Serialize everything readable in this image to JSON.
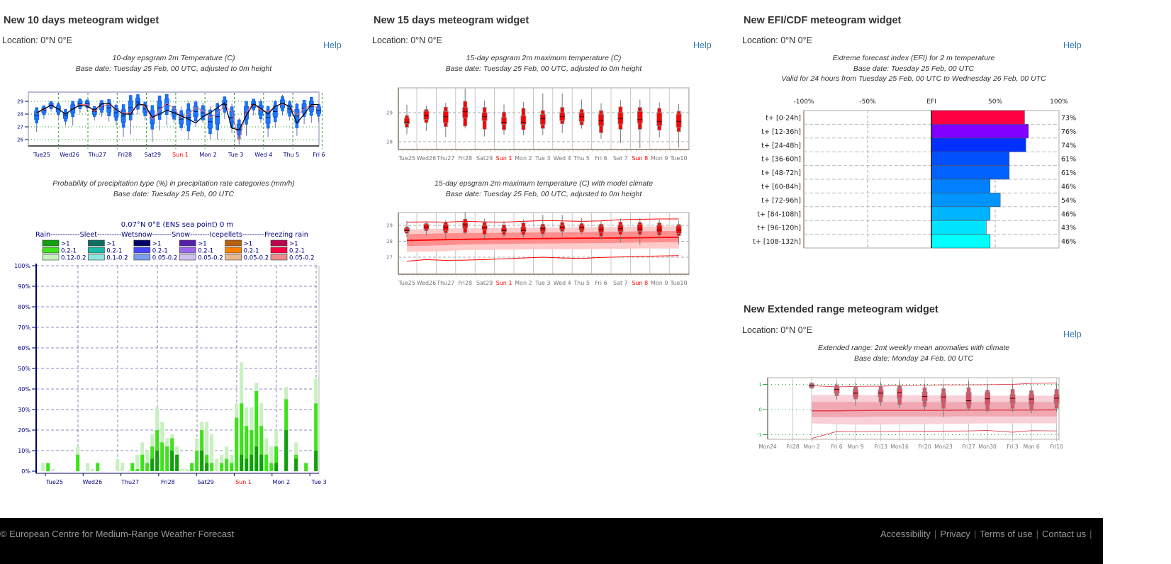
{
  "widgets": {
    "w10": {
      "title": "New 10 days meteogram widget",
      "location": "Location: 0°N 0°E",
      "help": "Help",
      "caption1": [
        "10-day epsgram 2m Temperature (C)",
        "Base date: Tuesday 25 Feb, 00 UTC, adjusted to 0m height"
      ],
      "caption2": [
        "Probability of precipitation type (%) in precipitation rate categories (mm/h)",
        "Base date: Tuesday 25 Feb, 00 UTC"
      ]
    },
    "w15": {
      "title": "New 15 days meteogram widget",
      "location": "Location: 0°N 0°E",
      "help": "Help",
      "caption1": [
        "15-day epsgram 2m maximum temperature (C)",
        "Base date: Tuesday 25 Feb, 00 UTC, adjusted to 0m height"
      ],
      "caption2": [
        "15-day epsgram 2m maximum temperature (C) with model climate",
        "Base date: Tuesday 25 Feb, 00 UTC, adjusted to 0m height"
      ]
    },
    "efi": {
      "title": "New EFI/CDF meteogram widget",
      "location": "Location: 0°N 0°E",
      "help": "Help",
      "caption": [
        "Extreme forecast index (EFI) for 2 m temperature",
        "Base date: Tuesday 25 Feb, 00 UTC",
        "Valid for 24 hours from Tuesday 25 Feb, 00 UTC to Wednesday 26 Feb, 00 UTC"
      ]
    },
    "ext": {
      "title": "New Extended range meteogram widget",
      "location": "Location: 0°N 0°E",
      "help": "Help",
      "caption": [
        "Extended range: 2mt weekly mean anomalies with climate",
        "Base date: Monday 24 Feb, 00 UTC"
      ]
    }
  },
  "footer": {
    "copyright": "© European Centre for Medium-Range Weather Forecast",
    "links": [
      "Accessibility",
      "Privacy",
      "Terms of use",
      "Contact us"
    ],
    "separator": "|"
  },
  "chart_data": [
    {
      "type": "box",
      "ylim": [
        25.6,
        29.7
      ],
      "y_ticks": [
        26,
        27,
        28,
        29
      ],
      "x_labels": [
        "Tue25",
        "Wed26",
        "Thu27",
        "Fri28",
        "Sat29",
        "Sun 1",
        "Mon 2",
        "Tue 3",
        "Wed 4",
        "Thu 5",
        "Fri 6"
      ],
      "weekend_label_color": "#ff0000",
      "box_color": "#1a75ff",
      "control_color": "#000000",
      "hres_color": "#ff6666",
      "median": [
        27.9,
        28.3,
        28.7,
        28.4,
        27.9,
        28.4,
        28.8,
        28.8,
        28.2,
        28.6,
        28.5,
        28.1,
        27.85,
        28.5,
        28.95,
        28.4,
        27.75,
        28.5,
        28.75,
        28.1,
        27.6,
        27.75,
        28.2,
        28.1,
        27.4,
        27.8,
        28.75,
        27.75,
        26.8,
        28.1,
        28.75,
        28.3,
        27.75,
        28.2,
        28.8,
        28.4,
        27.85,
        28.45,
        28.6,
        28.3
      ],
      "min": [
        26.6,
        27.6,
        28.2,
        27.7,
        27.1,
        27.1,
        28.1,
        28.2,
        27.5,
        27.8,
        27.4,
        27.1,
        26.2,
        26.4,
        28.0,
        27.5,
        25.8,
        26.7,
        27.1,
        27.3,
        26.7,
        26.0,
        27.0,
        27.3,
        26.0,
        26.0,
        27.6,
        26.5,
        25.6,
        26.3,
        27.9,
        27.3,
        26.2,
        26.9,
        27.9,
        27.5,
        26.3,
        27.2,
        27.3,
        27.4
      ],
      "max": [
        28.3,
        28.6,
        29.0,
        28.9,
        28.4,
        28.8,
        29.2,
        29.1,
        28.6,
        29.1,
        29.2,
        28.8,
        28.7,
        29.1,
        29.6,
        29.0,
        28.4,
        29.3,
        29.3,
        28.7,
        28.6,
        29.0,
        29.1,
        28.9,
        28.6,
        28.9,
        29.3,
        28.8,
        27.7,
        28.8,
        29.1,
        29.2,
        28.6,
        29.1,
        29.5,
        29.1,
        28.9,
        29.0,
        29.3,
        28.7
      ],
      "control": [
        28.1,
        28.4,
        28.7,
        28.4,
        28.0,
        28.4,
        28.7,
        28.6,
        28.3,
        28.8,
        28.85,
        28.35,
        28.0,
        28.0,
        28.8,
        28.7,
        27.75,
        28.0,
        28.3,
        28.1,
        27.85,
        27.6,
        27.3,
        27.8,
        28.1,
        28.5,
        28.9,
        26.9,
        26.75,
        27.9,
        28.8,
        28.45,
        28.0,
        28.6,
        28.85,
        28.6,
        27.3,
        28.0,
        28.75,
        28.75
      ],
      "hres": [
        28.05,
        28.35,
        28.7,
        28.4,
        28.0,
        28.4,
        28.75,
        28.75,
        28.2,
        28.6,
        28.8,
        28.3,
        28.1,
        28.1,
        28.8,
        28.6,
        27.6,
        28.3,
        28.85,
        28.45,
        27.7,
        28.0,
        28.5,
        28.3,
        27.7,
        28.1,
        28.6,
        28.2,
        25.9,
        28.2,
        28.8,
        28.3,
        28.2,
        28.6,
        28.8,
        28.6,
        27.9,
        28.4,
        28.75,
        28.4
      ]
    },
    {
      "type": "bar",
      "stacked": true,
      "title": "0.07°N 0°E (ENS sea point) 0 m",
      "legend_header": "Rain------------Sleet----------Wetsnow--------Snow--------Icepellets---------Freezing rain",
      "legend": [
        {
          "name": "Rain",
          "colors": [
            "#129e0e",
            "#3de21a",
            "#c8f0c0"
          ],
          "labels": [
            ">1",
            "0.2-1",
            "0.12-0.2"
          ]
        },
        {
          "name": "Sleet",
          "colors": [
            "#0b6e64",
            "#1cb8a6",
            "#8fe6de"
          ],
          "labels": [
            ">1",
            "0.2-1",
            "0.1-0.2"
          ]
        },
        {
          "name": "Wetsnow",
          "colors": [
            "#000066",
            "#4646ff",
            "#7a9cf0"
          ],
          "labels": [
            ">1",
            "0.2-1",
            "0.05-0.2"
          ]
        },
        {
          "name": "Snow",
          "colors": [
            "#5620aa",
            "#9a68ee",
            "#d0c0ee"
          ],
          "labels": [
            ">1",
            "0.2-1",
            "0.05-0.2"
          ]
        },
        {
          "name": "Icepellets",
          "colors": [
            "#b8600e",
            "#ff8000",
            "#e8b890"
          ],
          "labels": [
            ">1",
            "0.2-1",
            "0.05-0.2"
          ]
        },
        {
          "name": "Freezing rain",
          "colors": [
            "#bb0550",
            "#ff0044",
            "#ee8a8a"
          ],
          "labels": [
            ">1",
            "0.2-1",
            "0.05-0.2"
          ]
        }
      ],
      "ylim": [
        0,
        100
      ],
      "y_ticks": [
        "0%",
        "10%",
        "20%",
        "30%",
        "40%",
        "50%",
        "60%",
        "70%",
        "80%",
        "90%",
        "100%"
      ],
      "x_labels": [
        "Tue25",
        "Wed26",
        "Thu27",
        "Fri28",
        "Sat29",
        "Sun 1",
        "Mon 2",
        "Tue 3"
      ],
      "series": [
        {
          "name": ">1",
          "values": [
            0,
            0,
            0,
            0,
            0,
            0,
            0,
            0,
            0,
            0,
            0,
            0,
            0,
            0,
            0,
            0,
            0,
            0,
            0,
            0,
            0,
            0,
            6,
            10,
            0,
            0,
            10,
            8,
            0,
            0,
            0,
            0,
            10,
            4,
            0,
            0,
            0,
            0,
            0,
            0,
            8,
            6,
            8,
            12,
            8,
            0,
            0,
            4,
            0,
            20,
            0,
            6,
            0,
            0,
            0,
            10
          ]
        },
        {
          "name": "0.2-1",
          "values": [
            0,
            4,
            0,
            0,
            0,
            0,
            0,
            8,
            0,
            0,
            0,
            4,
            0,
            0,
            0,
            0,
            0,
            0,
            4,
            1,
            8,
            4,
            6,
            10,
            14,
            12,
            6,
            0,
            0,
            0,
            4,
            10,
            10,
            4,
            4,
            0,
            4,
            6,
            4,
            26,
            25,
            16,
            12,
            27,
            14,
            8,
            4,
            8,
            0,
            15,
            0,
            2,
            0,
            4,
            0,
            23
          ]
        },
        {
          "name": "0.12-0.2",
          "values": [
            4,
            0,
            1,
            0,
            0,
            0,
            0,
            4,
            0,
            4,
            1,
            0,
            0,
            0,
            0,
            6,
            4,
            0,
            0,
            7,
            6,
            6,
            6,
            11,
            10,
            4,
            2,
            4,
            1,
            1,
            0,
            6,
            4,
            16,
            14,
            6,
            4,
            6,
            4,
            7,
            20,
            9,
            11,
            4,
            11,
            8,
            8,
            8,
            0,
            6,
            0,
            6,
            0,
            0,
            0,
            12
          ]
        }
      ]
    },
    {
      "type": "box",
      "ylim": [
        27.73,
        29.85
      ],
      "y_ticks": [
        28,
        29
      ],
      "x_labels": [
        "Tue25",
        "Wed26",
        "Thu27",
        "Fri28",
        "Sat29",
        "Sun 1",
        "Mon 2",
        "Tue 3",
        "Wed 4",
        "Thu 5",
        "Fri 6",
        "Sat 7",
        "Sun 8",
        "Mon 9",
        "Tue10"
      ],
      "box_color": "#ff0000",
      "boxes": [
        [
          28.26,
          28.5,
          28.62,
          28.67,
          28.81,
          28.9,
          29.27
        ],
        [
          28.37,
          28.66,
          28.77,
          28.89,
          29.05,
          29.11,
          29.24
        ],
        [
          28.16,
          28.52,
          28.66,
          28.86,
          29.04,
          29.19,
          29.34
        ],
        [
          28.46,
          28.54,
          28.83,
          29.03,
          29.18,
          29.39,
          29.83
        ],
        [
          28.18,
          28.43,
          28.73,
          28.86,
          29.0,
          29.18,
          29.42
        ],
        [
          28.24,
          28.41,
          28.6,
          28.67,
          28.83,
          29.02,
          29.28
        ],
        [
          28.22,
          28.41,
          28.6,
          28.67,
          28.89,
          29.15,
          29.37
        ],
        [
          28.22,
          28.46,
          28.6,
          28.79,
          28.94,
          29.07,
          29.66
        ],
        [
          28.3,
          28.62,
          28.73,
          28.86,
          29.0,
          29.18,
          29.66
        ],
        [
          28.45,
          28.58,
          28.7,
          28.86,
          29.0,
          29.11,
          29.45
        ],
        [
          28.1,
          28.31,
          28.55,
          28.73,
          28.95,
          29.07,
          29.32
        ],
        [
          27.95,
          28.43,
          28.61,
          28.79,
          29.0,
          29.2,
          29.43
        ],
        [
          27.78,
          28.43,
          28.64,
          28.77,
          29.04,
          29.18,
          29.45
        ],
        [
          28.15,
          28.4,
          28.55,
          28.7,
          29.0,
          29.15,
          29.35
        ],
        [
          27.8,
          28.35,
          28.5,
          28.7,
          28.95,
          29.05,
          29.3
        ]
      ]
    },
    {
      "type": "box",
      "ylim": [
        26.0,
        29.78
      ],
      "y_ticks": [
        27,
        28,
        29
      ],
      "x_labels": [
        "Tue25",
        "Wed26",
        "Thu27",
        "Fri28",
        "Sat29",
        "Sun 1",
        "Mon 2",
        "Tue 3",
        "Wed 4",
        "Thu 5",
        "Fri 6",
        "Sat 7",
        "Sun 8",
        "Mon 9",
        "Tue10"
      ],
      "box_color": "#ff0000",
      "climate_color": "#ff0000",
      "climate": {
        "median": [
          28.05,
          28.07,
          28.1,
          28.12,
          28.14,
          28.15,
          28.16,
          28.17,
          28.18,
          28.19,
          28.2,
          28.21,
          28.22,
          28.24,
          28.25
        ],
        "inner_low": [
          27.7,
          27.72,
          27.75,
          27.8,
          27.82,
          27.83,
          27.85,
          27.86,
          27.87,
          27.88,
          27.89,
          27.9,
          27.92,
          27.93,
          27.95
        ],
        "inner_high": [
          28.45,
          28.47,
          28.5,
          28.52,
          28.52,
          28.53,
          28.55,
          28.55,
          28.57,
          28.58,
          28.6,
          28.6,
          28.62,
          28.63,
          28.65
        ],
        "outer_low": [
          27.35,
          27.35,
          27.38,
          27.45,
          27.45,
          27.47,
          27.48,
          27.5,
          27.5,
          27.5,
          27.52,
          27.53,
          27.55,
          27.55,
          27.55
        ],
        "outer_high": [
          28.75,
          28.77,
          28.8,
          28.82,
          28.82,
          28.83,
          28.85,
          28.85,
          28.86,
          28.87,
          28.88,
          28.9,
          28.92,
          28.93,
          28.95
        ],
        "max": [
          29.2,
          29.22,
          29.2,
          29.25,
          29.22,
          29.2,
          29.25,
          29.3,
          29.28,
          29.25,
          29.28,
          29.35,
          29.38,
          29.4,
          29.4
        ],
        "min": [
          26.75,
          26.85,
          26.8,
          26.82,
          26.85,
          26.9,
          26.95,
          27.0,
          26.95,
          26.92,
          26.98,
          27.02,
          27.05,
          27.08,
          27.1
        ]
      },
      "boxes_same_as_chart": 2
    },
    {
      "type": "bar",
      "orientation": "horizontal",
      "x_ticks": [
        "-100%",
        "-50%",
        "EFI",
        "50%",
        "100%"
      ],
      "xlim": [
        -100,
        100
      ],
      "categories": [
        "t+ [0-24h]",
        "t+ [12-36h]",
        "t+ [24-48h]",
        "t+ [36-60h]",
        "t+ [48-72h]",
        "t+ [60-84h]",
        "t+ [72-96h]",
        "t+ [84-108h]",
        "t+ [96-120h]",
        "t+ [108-132h]"
      ],
      "values": [
        73,
        76,
        74,
        61,
        61,
        46,
        54,
        46,
        43,
        46
      ],
      "value_labels": [
        "73%",
        "76%",
        "74%",
        "61%",
        "61%",
        "46%",
        "54%",
        "46%",
        "43%",
        "46%"
      ],
      "colors": [
        "#ff0040",
        "#8000ff",
        "#0030ff",
        "#0050ff",
        "#0062ff",
        "#0080ff",
        "#0094ff",
        "#00b4ff",
        "#00e4ff",
        "#00ffff"
      ]
    },
    {
      "type": "box",
      "ylim": [
        -1.18,
        1.28
      ],
      "y_ticks": [
        -1,
        0,
        1
      ],
      "x_labels": [
        "Mon24",
        "Fri28",
        "Mon 2",
        "Fri 6",
        "Mon 9",
        "Fri13",
        "Mon16",
        "Fri20",
        "Mon23",
        "Fri27",
        "Mon30",
        "Fri 3",
        "Mon 6",
        "Fri10"
      ],
      "box_color": "#e05262",
      "axis_color": "#22aa44",
      "boxes": [
        [
          0.8,
          0.85,
          0.9,
          0.95,
          1.0,
          1.05,
          1.08
        ],
        [
          0.4,
          0.55,
          0.65,
          0.8,
          0.9,
          0.98,
          1.08
        ],
        [
          0.15,
          0.42,
          0.5,
          0.65,
          0.8,
          0.9,
          1.08
        ],
        [
          0.15,
          0.3,
          0.5,
          0.65,
          0.78,
          0.92,
          1.1
        ],
        [
          0.05,
          0.2,
          0.45,
          0.67,
          0.83,
          0.95,
          1.12
        ],
        [
          0.0,
          0.13,
          0.35,
          0.52,
          0.7,
          0.87,
          1.0
        ],
        [
          -0.3,
          0.05,
          0.3,
          0.5,
          0.63,
          0.83,
          1.0
        ],
        [
          -0.05,
          0.05,
          0.2,
          0.35,
          0.68,
          0.87,
          1.12
        ],
        [
          -0.1,
          -0.05,
          0.2,
          0.43,
          0.67,
          0.77,
          1.02
        ],
        [
          -0.1,
          0.05,
          0.25,
          0.45,
          0.6,
          0.8,
          1.0
        ],
        [
          -0.15,
          0.0,
          0.2,
          0.42,
          0.6,
          0.75,
          0.95
        ],
        [
          -0.1,
          0.05,
          0.25,
          0.45,
          0.6,
          0.8,
          1.05
        ]
      ],
      "climate": {
        "median": [
          -0.05,
          -0.05,
          -0.04,
          -0.03,
          -0.03,
          -0.03,
          -0.03,
          -0.02,
          -0.02,
          -0.02,
          -0.02,
          -0.01
        ],
        "inner_low": [
          -0.3,
          -0.3,
          -0.3,
          -0.28,
          -0.28,
          -0.28,
          -0.28,
          -0.27,
          -0.27,
          -0.27,
          -0.27,
          -0.27
        ],
        "inner_high": [
          0.3,
          0.3,
          0.3,
          0.3,
          0.3,
          0.3,
          0.3,
          0.3,
          0.3,
          0.3,
          0.3,
          0.3
        ],
        "outer_low": [
          -0.55,
          -0.58,
          -0.6,
          -0.6,
          -0.58,
          -0.58,
          -0.57,
          -0.56,
          -0.55,
          -0.55,
          -0.55,
          -0.55
        ],
        "outer_high": [
          0.58,
          0.58,
          0.58,
          0.57,
          0.57,
          0.56,
          0.56,
          0.56,
          0.55,
          0.55,
          0.55,
          0.55
        ],
        "max": [
          0.95,
          0.9,
          0.92,
          0.93,
          0.95,
          0.97,
          0.98,
          0.98,
          0.99,
          1.0,
          1.04,
          1.05
        ],
        "min": [
          -1.15,
          -0.87,
          -0.88,
          -0.87,
          -0.87,
          -0.86,
          -0.86,
          -0.85,
          -0.83,
          -0.9,
          -0.84,
          -0.85
        ]
      }
    }
  ]
}
